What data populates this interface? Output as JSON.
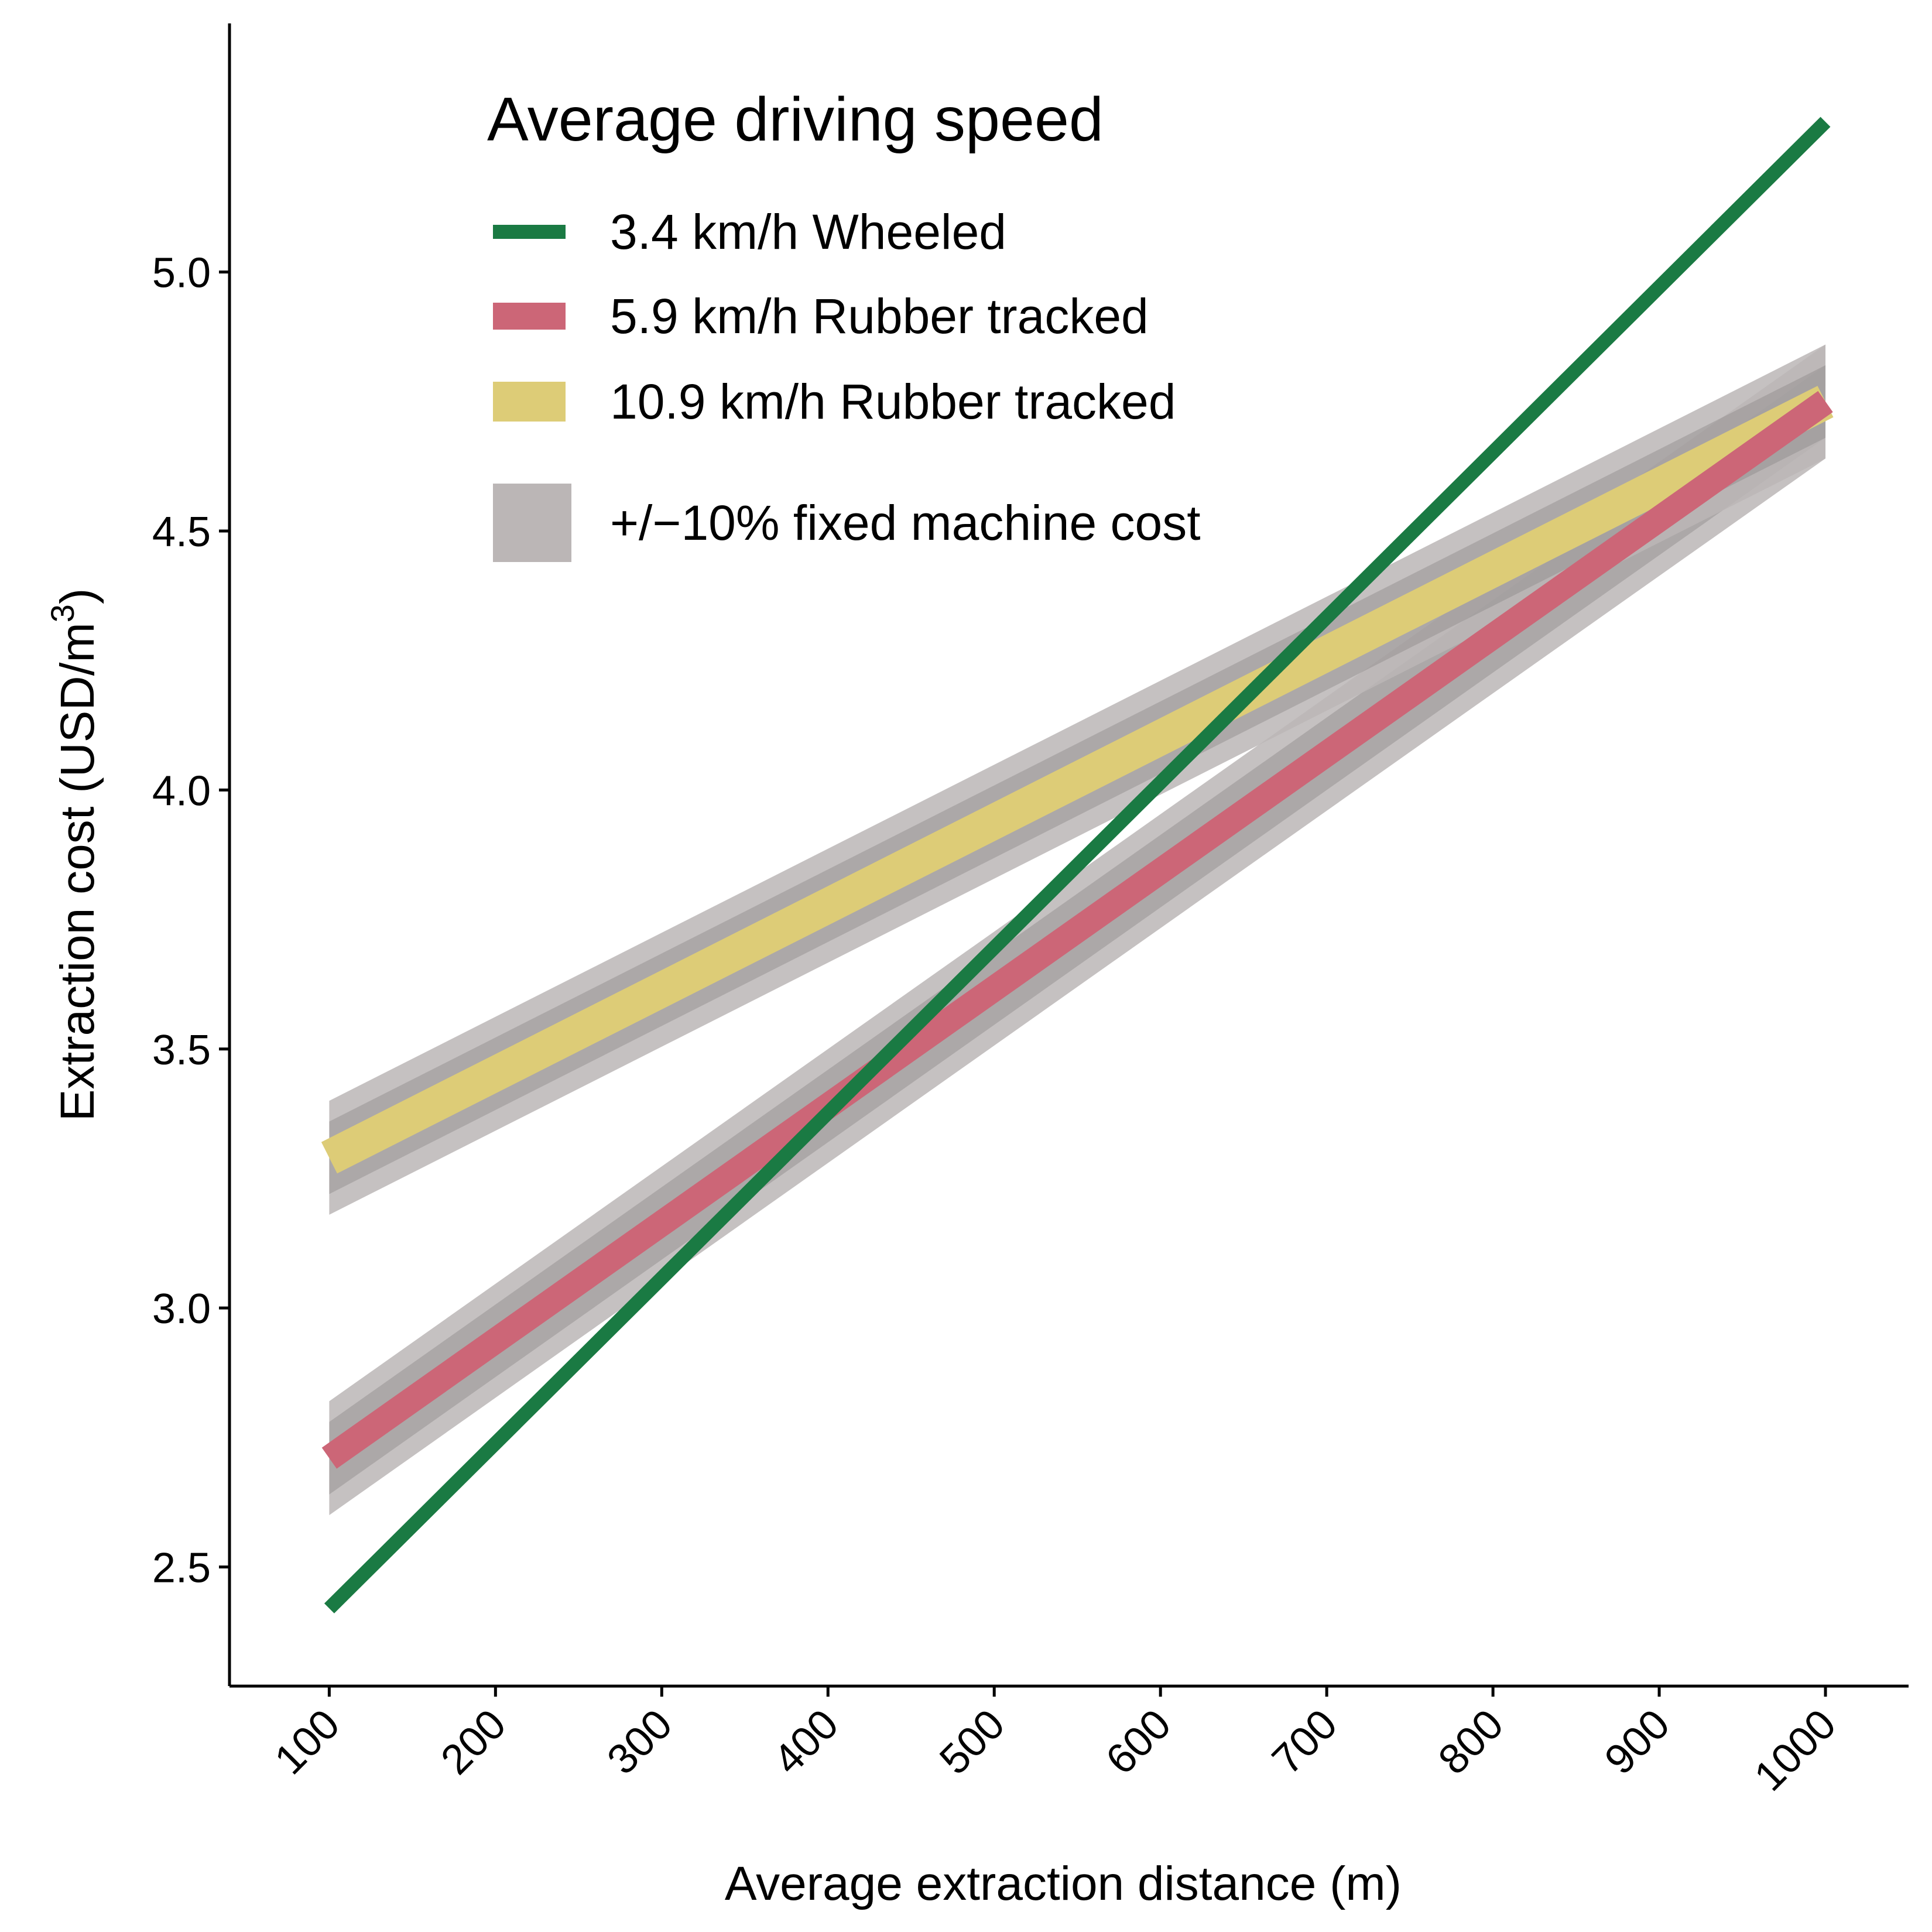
{
  "chart_data": {
    "type": "line",
    "title": "",
    "xlabel": "Average extraction distance (m)",
    "ylabel": "Extraction cost (USD/m",
    "ylabel_superscript": "3",
    "ylabel_suffix": ")",
    "xlim": [
      40,
      1050
    ],
    "ylim": [
      2.27,
      5.48
    ],
    "x_ticks": [
      100,
      200,
      300,
      400,
      500,
      600,
      700,
      800,
      900,
      1000
    ],
    "y_ticks": [
      2.5,
      3.0,
      3.5,
      4.0,
      4.5,
      5.0
    ],
    "y_tick_labels": [
      "2.5",
      "3.0",
      "3.5",
      "4.0",
      "4.5",
      "5.0"
    ],
    "grid": false,
    "legend_title": "Average driving speed",
    "legend_position": "top-left",
    "series": [
      {
        "name": "3.4  km/h  Wheeled",
        "color": "#1a7a43",
        "x": [
          100,
          1000
        ],
        "y": [
          2.42,
          5.29
        ],
        "band": [
          0.0,
          0.0
        ]
      },
      {
        "name": "5.9  km/h  Rubber tracked",
        "color": "#cc6677",
        "x": [
          100,
          1000
        ],
        "y": [
          2.71,
          4.75
        ],
        "band": [
          0.07,
          0.11
        ]
      },
      {
        "name": "10.9  km/h  Rubber tracked",
        "color": "#ddcc77",
        "x": [
          100,
          1000
        ],
        "y": [
          3.29,
          4.75
        ],
        "band": [
          0.07,
          0.11
        ]
      }
    ],
    "band_legend": {
      "label": "+/−10% fixed machine cost",
      "color": "#bbb6b6"
    }
  }
}
